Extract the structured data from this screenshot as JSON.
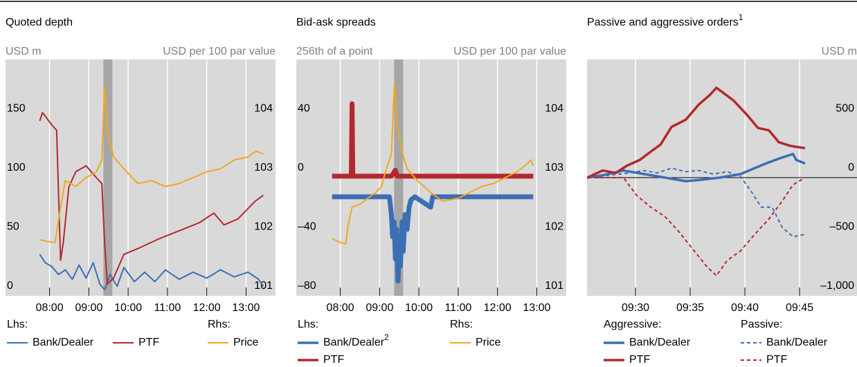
{
  "chart_data": [
    {
      "type": "line",
      "title": "Quoted depth",
      "y_label": "USD m",
      "y2_label": "USD per 100 par value",
      "xlim": [
        6.88,
        13.75
      ],
      "xticks": [
        {
          "value": 8,
          "label": "08:00"
        },
        {
          "value": 9,
          "label": "09:00"
        },
        {
          "value": 10,
          "label": "10:00"
        },
        {
          "value": 11,
          "label": "11:00"
        },
        {
          "value": 12,
          "label": "12:00"
        },
        {
          "value": 13,
          "label": "13:00"
        }
      ],
      "ylim": [
        0,
        200
      ],
      "yticks": [
        0,
        50,
        100,
        150
      ],
      "y2lim": [
        101,
        105
      ],
      "y2ticks": [
        101,
        102,
        103,
        104
      ],
      "shade_x": [
        9.37,
        9.6
      ],
      "legend_groups": [
        {
          "label": "Lhs:",
          "series": [
            0,
            1
          ]
        },
        {
          "label": "Rhs:",
          "series": [
            2
          ]
        }
      ],
      "series": [
        {
          "name": "Bank/Dealer",
          "color": "#3c6eb4",
          "x": [
            7.75,
            7.89,
            8.05,
            8.23,
            8.4,
            8.58,
            8.75,
            8.93,
            9.11,
            9.28,
            9.4,
            9.54,
            9.72,
            9.89,
            10.16,
            10.42,
            10.68,
            10.95,
            11.3,
            11.65,
            12.0,
            12.35,
            12.7,
            13.05,
            13.32,
            13.44
          ],
          "values": [
            35,
            28,
            25,
            18,
            22,
            14,
            26,
            15,
            28,
            10,
            5,
            18,
            8,
            24,
            12,
            20,
            12,
            22,
            14,
            20,
            15,
            22,
            16,
            20,
            14,
            8
          ]
        },
        {
          "name": "PTF",
          "color": "#b3282d",
          "x": [
            7.75,
            7.82,
            8.05,
            8.18,
            8.28,
            8.35,
            8.49,
            8.67,
            8.93,
            9.19,
            9.33,
            9.4,
            9.47,
            9.63,
            9.89,
            10.25,
            10.77,
            11.3,
            11.82,
            12.18,
            12.44,
            12.79,
            13.23,
            13.44
          ],
          "values": [
            148,
            155,
            145,
            140,
            30,
            45,
            92,
            105,
            110,
            100,
            95,
            45,
            10,
            15,
            35,
            40,
            48,
            55,
            62,
            70,
            60,
            65,
            80,
            85
          ]
        },
        {
          "name": "Price",
          "color": "#f0a81e",
          "axis": "y2",
          "x": [
            7.75,
            7.96,
            8.14,
            8.28,
            8.4,
            8.67,
            8.93,
            9.19,
            9.33,
            9.4,
            9.47,
            9.63,
            9.89,
            10.25,
            10.6,
            10.95,
            11.3,
            11.65,
            12.0,
            12.35,
            12.7,
            13.05,
            13.26,
            13.44
          ],
          "values": [
            101.95,
            101.92,
            101.9,
            102.5,
            102.95,
            102.85,
            103.0,
            103.1,
            103.3,
            104.55,
            103.8,
            103.35,
            103.15,
            102.9,
            102.95,
            102.85,
            102.9,
            103.0,
            103.1,
            103.15,
            103.3,
            103.35,
            103.45,
            103.4
          ]
        }
      ]
    },
    {
      "type": "line",
      "title": "Bid-ask spreads",
      "y_label": "256th of a point",
      "y2_label": "USD per 100 par value",
      "xlim": [
        6.88,
        13.75
      ],
      "xticks": [
        {
          "value": 8,
          "label": "08:00"
        },
        {
          "value": 9,
          "label": "09:00"
        },
        {
          "value": 10,
          "label": "10:00"
        },
        {
          "value": 11,
          "label": "11:00"
        },
        {
          "value": 12,
          "label": "12:00"
        },
        {
          "value": 13,
          "label": "13:00"
        }
      ],
      "ylim": [
        -80,
        80
      ],
      "yticks": [
        {
          "value": -80,
          "label": "–80"
        },
        {
          "value": -40,
          "label": "–40"
        },
        0,
        40
      ],
      "y2lim": [
        101,
        105
      ],
      "y2ticks": [
        101,
        102,
        103,
        104
      ],
      "shade_x": [
        9.37,
        9.6
      ],
      "legend_groups": [
        {
          "label": "Lhs:",
          "series": [
            0,
            1
          ]
        },
        {
          "label": "Rhs:",
          "series": [
            2
          ]
        }
      ],
      "series": [
        {
          "name": "Bank/Dealer",
          "name_note": "2",
          "color": "#3c6eb4",
          "x": [
            7.79,
            9.25,
            9.3,
            9.33,
            9.37,
            9.4,
            9.43,
            9.47,
            9.5,
            9.53,
            9.57,
            9.6,
            9.65,
            9.7,
            9.75,
            9.8,
            9.9,
            10.3,
            10.35,
            12.91
          ],
          "values": [
            -13,
            -13,
            -25,
            -40,
            -30,
            -55,
            -35,
            -70,
            -45,
            -60,
            -30,
            -50,
            -25,
            -35,
            -20,
            -15,
            -13,
            -20,
            -13,
            -13
          ]
        },
        {
          "name": "PTF",
          "color": "#b3282d",
          "x": [
            7.79,
            8.28,
            8.3,
            8.32,
            9.3,
            9.4,
            9.45,
            12.91
          ],
          "values": [
            1,
            1,
            50,
            1,
            1,
            5,
            1,
            1
          ]
        },
        {
          "name": "Price",
          "color": "#f0a81e",
          "axis": "y2",
          "x": [
            7.79,
            8.0,
            8.14,
            8.2,
            8.3,
            8.5,
            8.7,
            8.9,
            9.05,
            9.15,
            9.3,
            9.38,
            9.45,
            9.55,
            9.7,
            9.96,
            10.3,
            10.6,
            11.0,
            11.3,
            11.6,
            11.9,
            12.2,
            12.5,
            12.7,
            12.85,
            12.91
          ],
          "values": [
            101.97,
            101.9,
            101.88,
            102.2,
            102.5,
            102.55,
            102.65,
            102.75,
            102.85,
            103.1,
            103.4,
            104.6,
            103.9,
            103.5,
            103.15,
            102.95,
            102.75,
            102.6,
            102.65,
            102.75,
            102.85,
            102.9,
            103.0,
            103.1,
            103.2,
            103.3,
            103.2
          ]
        }
      ]
    },
    {
      "type": "line",
      "title": "Passive and aggressive orders",
      "title_note": "1",
      "y_label": "USD m",
      "y_side": "right",
      "xlim": [
        25.57,
        50.25
      ],
      "xticks": [
        {
          "value": 30,
          "label": "09:30"
        },
        {
          "value": 35,
          "label": "09:35"
        },
        {
          "value": 40,
          "label": "09:40"
        },
        {
          "value": 45,
          "label": "09:45"
        }
      ],
      "ylim": [
        -1000,
        1000
      ],
      "yticks": [
        {
          "value": -1000,
          "label": "–1,000"
        },
        {
          "value": -500,
          "label": "–500"
        },
        0,
        500
      ],
      "zero_line": true,
      "legend_groups": [
        {
          "label": "Aggressive:",
          "series": [
            0,
            1
          ]
        },
        {
          "label": "Passive:",
          "series": [
            2,
            3
          ]
        }
      ],
      "series": [
        {
          "name": "Bank/Dealer",
          "color": "#3c6eb4",
          "x": [
            25.6,
            27.0,
            28.9,
            30.8,
            32.7,
            34.6,
            35.8,
            37.7,
            39.6,
            40.9,
            42.2,
            43.4,
            44.4,
            44.7,
            45.5
          ],
          "values": [
            0,
            20,
            60,
            30,
            0,
            -30,
            -20,
            0,
            30,
            80,
            130,
            170,
            200,
            150,
            120
          ]
        },
        {
          "name": "PTF",
          "color": "#b3282d",
          "x": [
            25.6,
            27.0,
            28.2,
            29.2,
            30.4,
            31.4,
            32.3,
            33.3,
            34.6,
            35.8,
            36.8,
            37.4,
            38.0,
            39.0,
            40.3,
            41.2,
            42.2,
            43.1,
            44.1,
            44.7,
            45.5
          ],
          "values": [
            0,
            60,
            40,
            100,
            150,
            220,
            280,
            430,
            490,
            620,
            700,
            760,
            720,
            650,
            520,
            420,
            400,
            300,
            270,
            260,
            250
          ]
        },
        {
          "name": "Bank/Dealer",
          "color": "#3c6eb4",
          "dash": true,
          "x": [
            25.6,
            27.6,
            29.5,
            30.8,
            32.0,
            33.3,
            34.6,
            35.8,
            37.1,
            38.4,
            39.6,
            40.6,
            41.5,
            42.5,
            43.4,
            44.4,
            45.5
          ],
          "values": [
            0,
            20,
            40,
            60,
            40,
            80,
            50,
            60,
            30,
            50,
            10,
            -120,
            -250,
            -250,
            -420,
            -500,
            -480
          ]
        },
        {
          "name": "PTF",
          "color": "#b3282d",
          "dash": true,
          "x": [
            25.6,
            28.9,
            30.1,
            31.4,
            32.7,
            33.9,
            35.2,
            36.5,
            37.4,
            38.4,
            39.6,
            40.9,
            42.2,
            43.4,
            44.4,
            45.5
          ],
          "values": [
            0,
            0,
            -150,
            -250,
            -330,
            -450,
            -600,
            -750,
            -830,
            -700,
            -620,
            -480,
            -350,
            -200,
            -60,
            0
          ]
        }
      ]
    }
  ]
}
